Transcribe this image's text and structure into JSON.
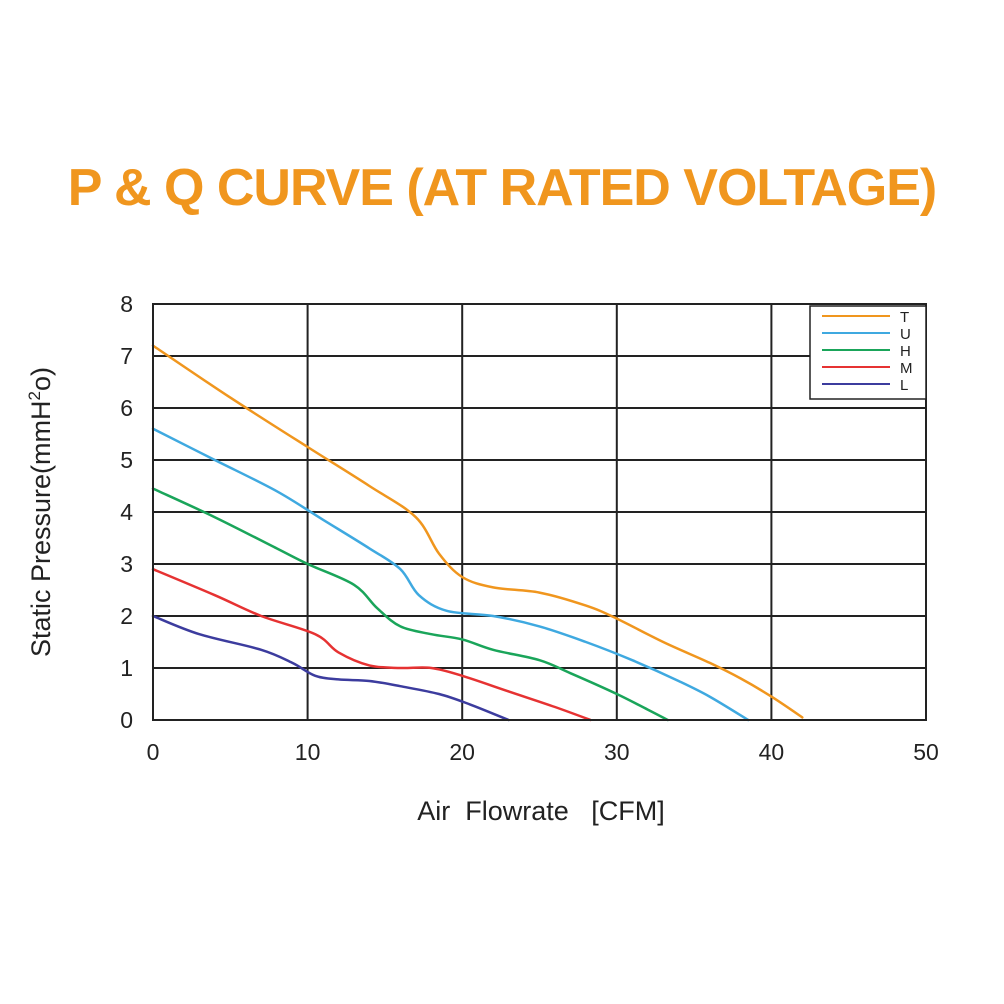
{
  "chart_data": {
    "type": "line",
    "title": "P & Q CURVE (AT RATED VOLTAGE)",
    "xlabel": "Air  Flowrate   [CFM]",
    "ylabel_main": "Static Pressure(mmH",
    "ylabel_sup": "2",
    "ylabel_end": "o)",
    "xlim": [
      0,
      50
    ],
    "ylim": [
      0,
      8
    ],
    "xticks": [
      0,
      10,
      20,
      30,
      40,
      50
    ],
    "yticks": [
      0,
      1,
      2,
      3,
      4,
      5,
      6,
      7,
      8
    ],
    "grid": true,
    "legend_position": "top-right",
    "title_color": "#f0961e",
    "series": [
      {
        "name": "T",
        "color": "#f0961e",
        "points": [
          [
            0,
            7.2
          ],
          [
            5,
            6.2
          ],
          [
            10,
            5.25
          ],
          [
            14,
            4.5
          ],
          [
            17,
            3.9
          ],
          [
            18.5,
            3.2
          ],
          [
            20,
            2.75
          ],
          [
            22,
            2.55
          ],
          [
            25,
            2.45
          ],
          [
            28,
            2.2
          ],
          [
            30,
            1.95
          ],
          [
            33,
            1.5
          ],
          [
            36,
            1.1
          ],
          [
            38,
            0.8
          ],
          [
            40,
            0.45
          ],
          [
            42,
            0.05
          ]
        ]
      },
      {
        "name": "U",
        "color": "#3fa9e0",
        "points": [
          [
            0,
            5.6
          ],
          [
            4,
            5.0
          ],
          [
            8,
            4.4
          ],
          [
            11,
            3.85
          ],
          [
            14,
            3.3
          ],
          [
            16,
            2.9
          ],
          [
            17.2,
            2.4
          ],
          [
            19,
            2.1
          ],
          [
            22,
            2.0
          ],
          [
            25,
            1.8
          ],
          [
            28,
            1.5
          ],
          [
            31,
            1.15
          ],
          [
            34,
            0.75
          ],
          [
            36,
            0.45
          ],
          [
            38.5,
            0.0
          ]
        ]
      },
      {
        "name": "H",
        "color": "#1aa55a",
        "points": [
          [
            0,
            4.45
          ],
          [
            4,
            3.9
          ],
          [
            8,
            3.3
          ],
          [
            10,
            3.0
          ],
          [
            13,
            2.6
          ],
          [
            14.5,
            2.15
          ],
          [
            16,
            1.8
          ],
          [
            18,
            1.65
          ],
          [
            20,
            1.55
          ],
          [
            22,
            1.35
          ],
          [
            25,
            1.15
          ],
          [
            27,
            0.9
          ],
          [
            30,
            0.5
          ],
          [
            32,
            0.2
          ],
          [
            33.3,
            0.0
          ]
        ]
      },
      {
        "name": "M",
        "color": "#e63232",
        "points": [
          [
            0,
            2.9
          ],
          [
            4,
            2.4
          ],
          [
            7,
            2.0
          ],
          [
            10.5,
            1.65
          ],
          [
            12,
            1.3
          ],
          [
            14,
            1.05
          ],
          [
            16,
            1.0
          ],
          [
            18,
            1.0
          ],
          [
            20,
            0.85
          ],
          [
            23,
            0.55
          ],
          [
            26,
            0.25
          ],
          [
            28.3,
            0.0
          ]
        ]
      },
      {
        "name": "L",
        "color": "#3c3c9e",
        "points": [
          [
            0,
            2.0
          ],
          [
            3,
            1.65
          ],
          [
            7,
            1.35
          ],
          [
            9,
            1.1
          ],
          [
            10.5,
            0.85
          ],
          [
            12,
            0.78
          ],
          [
            14,
            0.75
          ],
          [
            16,
            0.65
          ],
          [
            18.5,
            0.5
          ],
          [
            20.5,
            0.3
          ],
          [
            23,
            0.0
          ]
        ]
      }
    ]
  }
}
